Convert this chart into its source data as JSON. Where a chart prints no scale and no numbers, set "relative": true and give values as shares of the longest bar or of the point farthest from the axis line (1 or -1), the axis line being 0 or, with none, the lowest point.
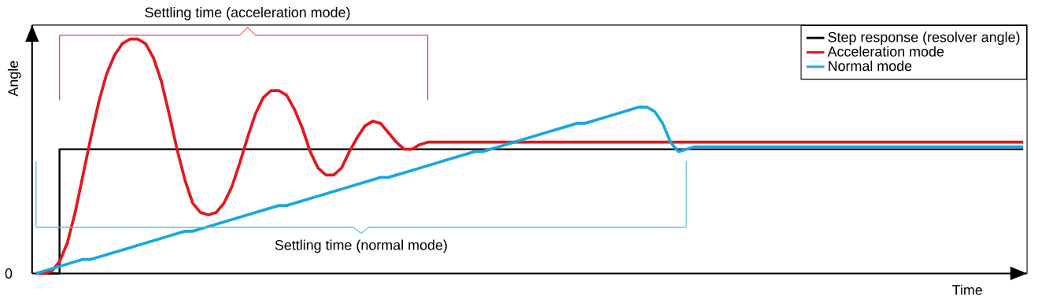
{
  "chart_data": {
    "type": "line",
    "relative": true,
    "xlabel": "Time",
    "ylabel": "Angle",
    "legend": "top right",
    "categories": [
      null,
      null,
      null,
      null,
      null,
      null,
      null,
      null,
      null,
      null,
      null,
      null,
      null,
      null,
      null,
      null,
      null,
      null,
      null,
      null,
      null,
      null,
      null,
      null,
      null,
      null,
      null,
      null,
      null,
      null,
      null,
      null,
      null,
      null,
      null,
      null,
      null,
      null,
      null,
      null,
      null,
      null,
      null,
      null,
      null,
      null,
      null,
      null,
      null,
      null,
      null,
      null,
      null,
      null,
      null,
      null,
      null,
      null,
      null,
      null,
      null,
      null,
      null,
      null,
      null,
      null,
      null,
      null,
      null,
      null,
      null,
      null,
      null,
      null,
      null,
      null,
      null,
      null,
      null,
      null,
      null,
      null,
      null,
      null,
      null,
      null,
      null,
      null,
      null,
      null,
      null,
      null,
      null,
      null,
      null,
      null,
      null,
      null,
      null,
      null,
      null,
      null,
      null,
      null,
      null,
      null,
      null,
      null,
      null,
      null,
      null,
      null,
      null,
      null,
      null,
      null,
      null,
      null,
      null,
      null,
      null,
      null,
      null,
      null,
      null,
      null,
      null
    ],
    "series": [
      {
        "name": "Step response (resolver angle)",
        "type": "step",
        "color": "#000000",
        "values": [
          0,
          0,
          0,
          0.53,
          0.53,
          0.53,
          0.53,
          0.53,
          0.53,
          0.53,
          0.53,
          0.53,
          0.53,
          0.53,
          0.53,
          0.53,
          0.53,
          0.53,
          0.53,
          0.53,
          0.53,
          0.53,
          0.53,
          0.53,
          0.53,
          0.53,
          0.53,
          0.53,
          0.53,
          0.53,
          0.53,
          0.53,
          0.53,
          0.53,
          0.53,
          0.53,
          0.53,
          0.53,
          0.53,
          0.53,
          0.53,
          0.53,
          0.53,
          0.53,
          0.53,
          0.53,
          0.53,
          0.53,
          0.53,
          0.53,
          0.53,
          0.53,
          0.53,
          0.53,
          0.53,
          0.53,
          0.53,
          0.53,
          0.53,
          0.53,
          0.53,
          0.53,
          0.53,
          0.53,
          0.53,
          0.53,
          0.53,
          0.53,
          0.53,
          0.53,
          0.53,
          0.53,
          0.53,
          0.53,
          0.53,
          0.53,
          0.53,
          0.53,
          0.53,
          0.53,
          0.53,
          0.53,
          0.53,
          0.53,
          0.53,
          0.53,
          0.53,
          0.53,
          0.53,
          0.53,
          0.53,
          0.53,
          0.53,
          0.53,
          0.53,
          0.53,
          0.53,
          0.53,
          0.53,
          0.53,
          0.53,
          0.53,
          0.53,
          0.53,
          0.53,
          0.53,
          0.53,
          0.53,
          0.53,
          0.53,
          0.53,
          0.53,
          0.53,
          0.53,
          0.53,
          0.53,
          0.53,
          0.53,
          0.53,
          0.53,
          0.53,
          0.53,
          0.53,
          0.53,
          0.53,
          0.53,
          0.53
        ]
      },
      {
        "name": "Acceleration mode",
        "color": "#e2181e",
        "values": [
          0,
          0,
          0.01,
          0.05,
          0.13,
          0.26,
          0.42,
          0.58,
          0.73,
          0.85,
          0.93,
          0.98,
          1,
          1,
          0.98,
          0.92,
          0.82,
          0.68,
          0.53,
          0.4,
          0.3,
          0.26,
          0.25,
          0.26,
          0.3,
          0.37,
          0.47,
          0.58,
          0.68,
          0.75,
          0.78,
          0.78,
          0.76,
          0.7,
          0.62,
          0.52,
          0.45,
          0.42,
          0.42,
          0.45,
          0.52,
          0.58,
          0.63,
          0.65,
          0.64,
          0.6,
          0.56,
          0.53,
          0.53,
          0.55,
          0.56,
          0.56,
          0.56,
          0.56,
          0.56,
          0.56,
          0.56,
          0.56,
          0.56,
          0.56,
          0.56,
          0.56,
          0.56,
          0.56,
          0.56,
          0.56,
          0.56,
          0.56,
          0.56,
          0.56,
          0.56,
          0.56,
          0.56,
          0.56,
          0.56,
          0.56,
          0.56,
          0.56,
          0.56,
          0.56,
          0.56,
          0.56,
          0.56,
          0.56,
          0.56,
          0.56,
          0.56,
          0.56,
          0.56,
          0.56,
          0.56,
          0.56,
          0.56,
          0.56,
          0.56,
          0.56,
          0.56,
          0.56,
          0.56,
          0.56,
          0.56,
          0.56,
          0.56,
          0.56,
          0.56,
          0.56,
          0.56,
          0.56,
          0.56,
          0.56,
          0.56,
          0.56,
          0.56,
          0.56,
          0.56,
          0.56,
          0.56,
          0.56,
          0.56,
          0.56,
          0.56,
          0.56,
          0.56,
          0.56,
          0.56,
          0.56,
          0.56
        ]
      },
      {
        "name": "Normal mode",
        "color": "#1aa7de",
        "values": [
          0,
          0.01,
          0.02,
          0.03,
          0.04,
          0.05,
          0.06,
          0.06,
          0.07,
          0.08,
          0.09,
          0.1,
          0.11,
          0.12,
          0.13,
          0.14,
          0.15,
          0.16,
          0.17,
          0.18,
          0.18,
          0.19,
          0.2,
          0.21,
          0.22,
          0.23,
          0.24,
          0.25,
          0.26,
          0.27,
          0.28,
          0.29,
          0.29,
          0.3,
          0.31,
          0.32,
          0.33,
          0.34,
          0.35,
          0.36,
          0.37,
          0.38,
          0.39,
          0.4,
          0.41,
          0.41,
          0.42,
          0.43,
          0.44,
          0.45,
          0.46,
          0.47,
          0.48,
          0.49,
          0.5,
          0.51,
          0.52,
          0.52,
          0.53,
          0.54,
          0.55,
          0.56,
          0.57,
          0.58,
          0.59,
          0.6,
          0.61,
          0.62,
          0.63,
          0.64,
          0.64,
          0.65,
          0.66,
          0.67,
          0.68,
          0.69,
          0.7,
          0.71,
          0.71,
          0.69,
          0.64,
          0.56,
          0.52,
          0.53,
          0.54,
          0.54,
          0.54,
          0.54,
          0.54,
          0.54,
          0.54,
          0.54,
          0.54,
          0.54,
          0.54,
          0.54,
          0.54,
          0.54,
          0.54,
          0.54,
          0.54,
          0.54,
          0.54,
          0.54,
          0.54,
          0.54,
          0.54,
          0.54,
          0.54,
          0.54,
          0.54,
          0.54,
          0.54,
          0.54,
          0.54,
          0.54,
          0.54,
          0.54,
          0.54,
          0.54,
          0.54,
          0.54,
          0.54,
          0.54,
          0.54,
          0.54,
          0.54
        ]
      }
    ],
    "annotations": [
      "Settling time (acceleration mode)",
      "Settling time (normal mode)",
      "0"
    ]
  }
}
